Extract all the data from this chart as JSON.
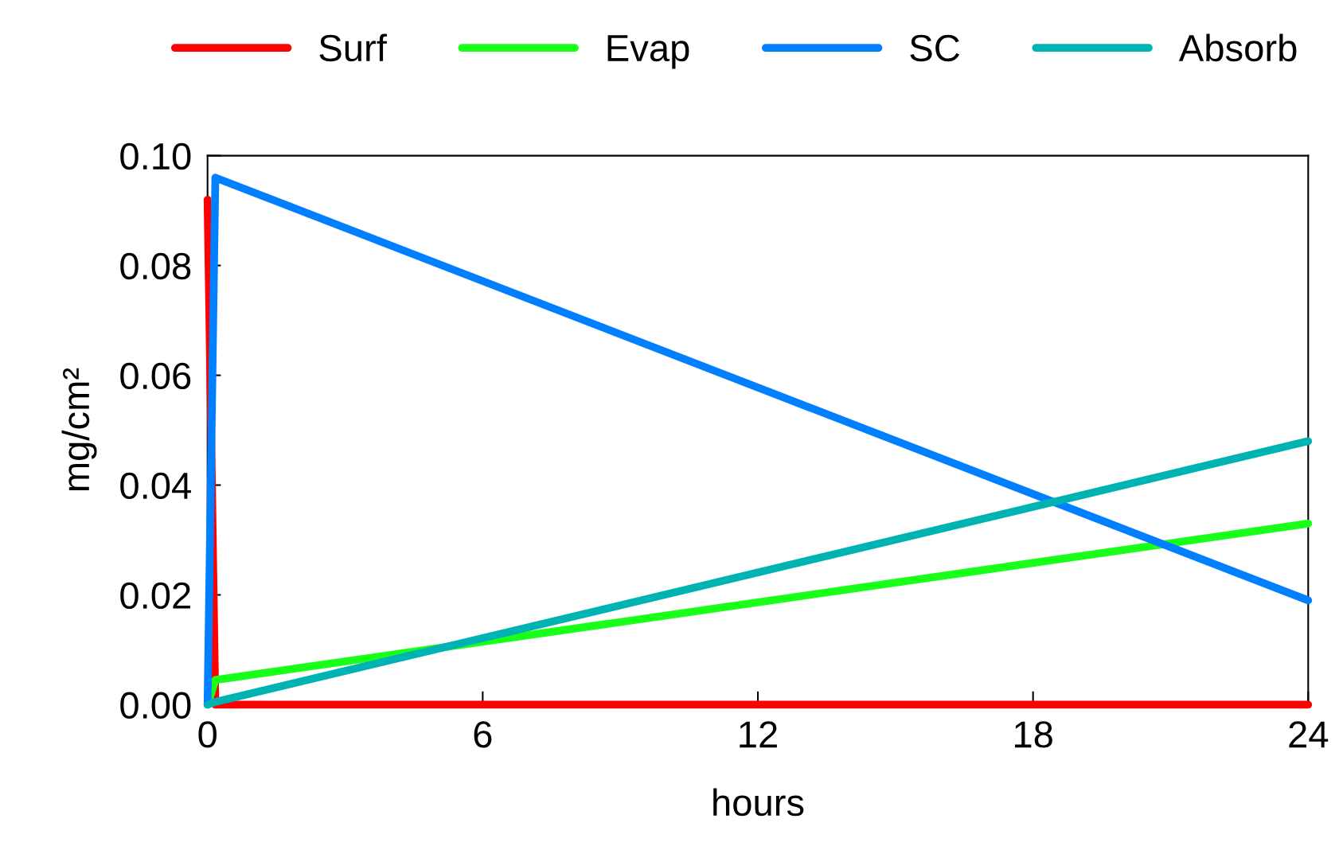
{
  "chart_data": {
    "type": "line",
    "xlabel": "hours",
    "ylabel": "mg/cm²",
    "xlim": [
      0,
      24
    ],
    "xticks": [
      0,
      6,
      12,
      18,
      24
    ],
    "ylim": [
      0,
      0.1
    ],
    "yticks": [
      {
        "value": 0,
        "label": "0.00"
      },
      {
        "value": 0.02,
        "label": "0.02"
      },
      {
        "value": 0.04,
        "label": "0.04"
      },
      {
        "value": 0.06,
        "label": "0.06"
      },
      {
        "value": 0.08,
        "label": "0.08"
      },
      {
        "value": 0.1,
        "label": "0.10"
      }
    ],
    "grid": false,
    "legend": "top",
    "marker": "none",
    "line_style": "solid",
    "series": [
      {
        "name": "Surf",
        "color": "#ff0000",
        "x": [
          0,
          0.17,
          24
        ],
        "values": [
          0.092,
          0,
          0
        ]
      },
      {
        "name": "Evap",
        "color": "#1aff1a",
        "x": [
          0,
          0.17,
          24
        ],
        "values": [
          0,
          0.0045,
          0.033
        ]
      },
      {
        "name": "SC",
        "color": "#0080ff",
        "x": [
          0,
          0.17,
          24
        ],
        "values": [
          0,
          0.096,
          0.019
        ]
      },
      {
        "name": "Absorb",
        "color": "#00b3b3",
        "x": [
          0,
          0.17,
          24
        ],
        "values": [
          0,
          0.0005,
          0.048
        ]
      }
    ]
  }
}
